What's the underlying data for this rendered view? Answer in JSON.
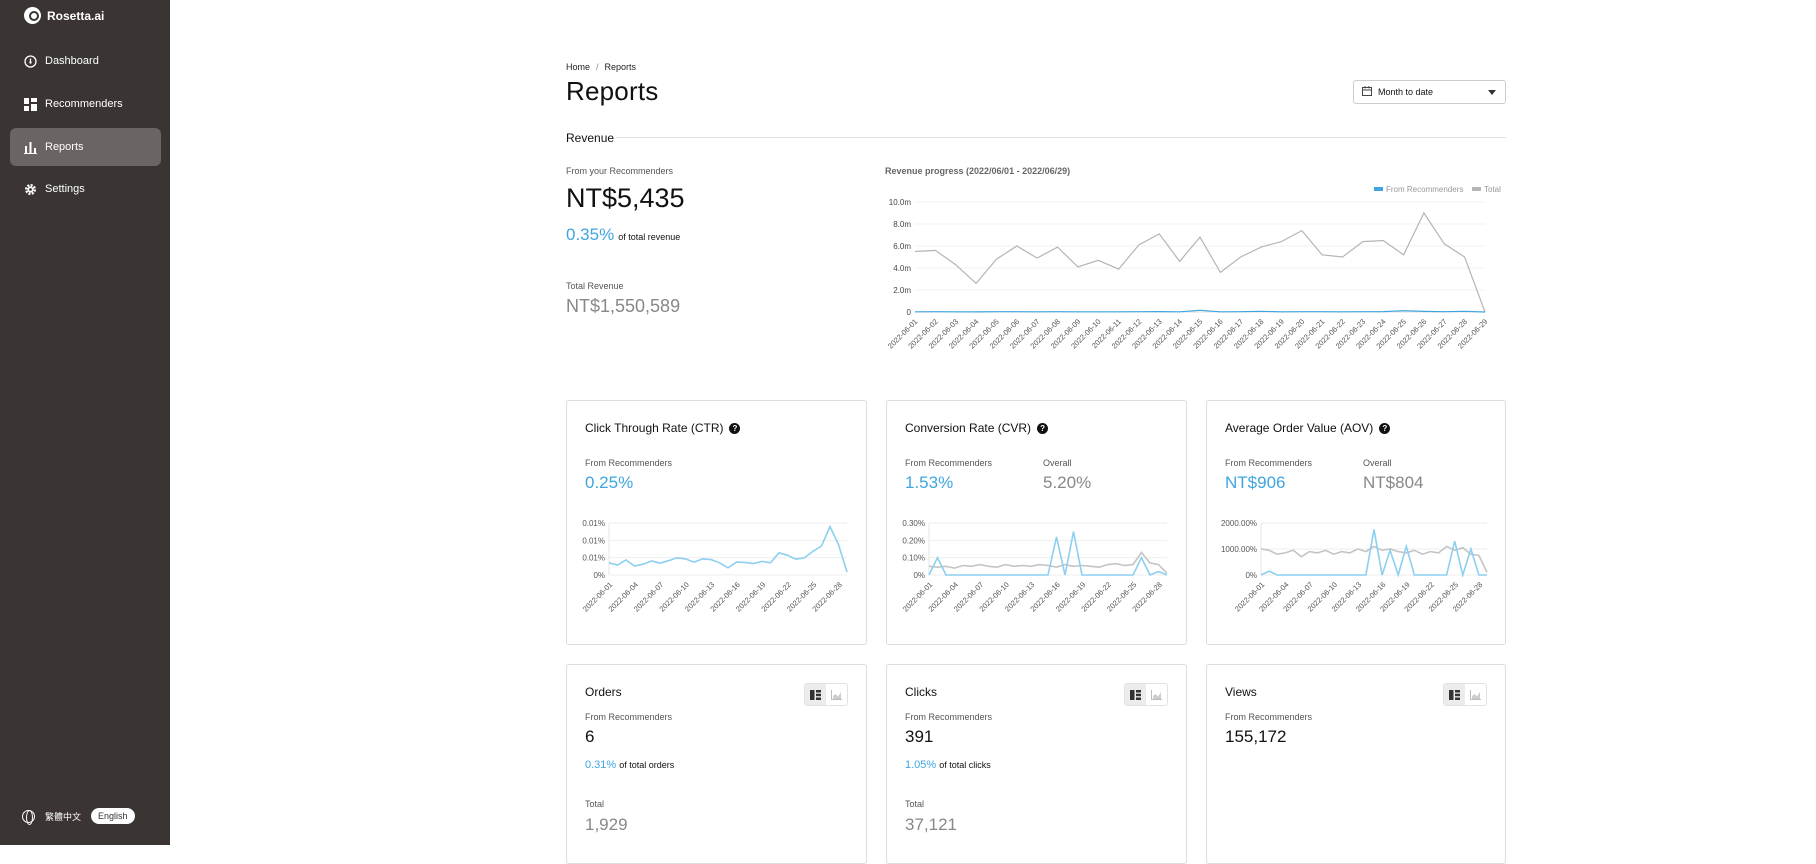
{
  "app": {
    "name": "Rosetta.ai"
  },
  "sidebar": {
    "items": [
      {
        "label": "Dashboard",
        "icon": "dashboard-icon"
      },
      {
        "label": "Recommenders",
        "icon": "grid-icon"
      },
      {
        "label": "Reports",
        "icon": "bar-chart-icon",
        "active": true
      },
      {
        "label": "Settings",
        "icon": "gear-icon"
      }
    ],
    "lang_zh": "繁體中文",
    "lang_en": "English"
  },
  "breadcrumb": {
    "home": "Home",
    "sep": "/",
    "current": "Reports"
  },
  "page": {
    "title": "Reports",
    "date_range": "Month to date"
  },
  "colors": {
    "accent": "#3ea5e0",
    "total_line": "#b5b5b5",
    "sidebar": "#3a3533"
  },
  "revenue": {
    "section_title": "Revenue",
    "from_label": "From your Recommenders",
    "from_value": "NT$5,435",
    "pct": "0.35%",
    "pct_suffix": "of total revenue",
    "total_label": "Total Revenue",
    "total_value": "NT$1,550,589"
  },
  "metrics": {
    "ctr": {
      "title": "Click Through Rate (CTR)",
      "from_label": "From Recommenders",
      "from_value": "0.25%"
    },
    "cvr": {
      "title": "Conversion Rate (CVR)",
      "from_label": "From Recommenders",
      "from_value": "1.53%",
      "overall_label": "Overall",
      "overall_value": "5.20%"
    },
    "aov": {
      "title": "Average Order Value (AOV)",
      "from_label": "From Recommenders",
      "from_value": "NT$906",
      "overall_label": "Overall",
      "overall_value": "NT$804"
    },
    "orders": {
      "title": "Orders",
      "from_label": "From Recommenders",
      "from_value": "6",
      "pct": "0.31%",
      "pct_suffix": "of total orders",
      "total_label": "Total",
      "total_value": "1,929"
    },
    "clicks": {
      "title": "Clicks",
      "from_label": "From Recommenders",
      "from_value": "391",
      "pct": "1.05%",
      "pct_suffix": "of total clicks",
      "total_label": "Total",
      "total_value": "37,121"
    },
    "views": {
      "title": "Views",
      "from_label": "From Recommenders",
      "from_value": "155,172"
    }
  },
  "chart_data": [
    {
      "type": "line",
      "title": "Revenue progress (2022/06/01 - 2022/06/29)",
      "legend": [
        "From Recommenders",
        "Total"
      ],
      "legend_position": "top-right",
      "ylim": [
        0,
        10000000
      ],
      "y_ticks": [
        "0",
        "2.0m",
        "4.0m",
        "6.0m",
        "8.0m",
        "10.0m"
      ],
      "x": [
        "2022-06-01",
        "2022-06-02",
        "2022-06-03",
        "2022-06-04",
        "2022-06-05",
        "2022-06-06",
        "2022-06-07",
        "2022-06-08",
        "2022-06-09",
        "2022-06-10",
        "2022-06-11",
        "2022-06-12",
        "2022-06-13",
        "2022-06-14",
        "2022-06-15",
        "2022-06-16",
        "2022-06-17",
        "2022-06-18",
        "2022-06-19",
        "2022-06-20",
        "2022-06-21",
        "2022-06-22",
        "2022-06-23",
        "2022-06-24",
        "2022-06-25",
        "2022-06-26",
        "2022-06-27",
        "2022-06-28",
        "2022-06-29"
      ],
      "series": [
        {
          "name": "Total",
          "color": "#b5b5b5",
          "values": [
            5500000,
            5600000,
            4300000,
            2600000,
            4800000,
            6000000,
            4900000,
            5900000,
            4100000,
            4700000,
            3900000,
            6100000,
            7100000,
            4600000,
            6800000,
            3600000,
            5000000,
            5900000,
            6400000,
            7400000,
            5200000,
            5000000,
            6400000,
            6500000,
            5200000,
            9000000,
            6200000,
            5000000,
            0
          ]
        },
        {
          "name": "From Recommenders",
          "color": "#3ea5e0",
          "values": [
            20000,
            30000,
            15000,
            10000,
            25000,
            30000,
            20000,
            25000,
            15000,
            20000,
            15000,
            30000,
            40000,
            20000,
            150000,
            20000,
            30000,
            60000,
            20000,
            30000,
            25000,
            20000,
            30000,
            40000,
            120000,
            50000,
            30000,
            60000,
            0
          ]
        }
      ]
    },
    {
      "type": "line",
      "name": "ctr",
      "y_ticks": [
        "0%",
        "0.01%",
        "0.01%",
        "0.01%"
      ],
      "x_ticks": [
        "2022-06-01",
        "2022-06-04",
        "2022-06-07",
        "2022-06-10",
        "2022-06-13",
        "2022-06-16",
        "2022-06-19",
        "2022-06-22",
        "2022-06-25",
        "2022-06-28"
      ],
      "series": [
        {
          "color": "#8ccff0",
          "values": [
            0.0034,
            0.0028,
            0.0042,
            0.0025,
            0.003,
            0.0039,
            0.0033,
            0.004,
            0.0048,
            0.0045,
            0.0036,
            0.0045,
            0.0043,
            0.0034,
            0.002,
            0.0036,
            0.0035,
            0.0032,
            0.0038,
            0.0034,
            0.0062,
            0.0055,
            0.0044,
            0.0048,
            0.0066,
            0.0081,
            0.0135,
            0.0085,
            0.0008
          ]
        }
      ]
    },
    {
      "type": "line",
      "name": "cvr",
      "y_ticks": [
        "0%",
        "0.10%",
        "0.20%",
        "0.30%"
      ],
      "x_ticks": [
        "2022-06-01",
        "2022-06-04",
        "2022-06-07",
        "2022-06-10",
        "2022-06-13",
        "2022-06-16",
        "2022-06-19",
        "2022-06-22",
        "2022-06-25",
        "2022-06-28"
      ],
      "series": [
        {
          "color": "#c4c4c4",
          "values": [
            0.05,
            0.045,
            0.05,
            0.04,
            0.055,
            0.05,
            0.06,
            0.05,
            0.045,
            0.06,
            0.05,
            0.055,
            0.05,
            0.06,
            0.055,
            0.045,
            0.06,
            0.05,
            0.055,
            0.05,
            0.045,
            0.06,
            0.065,
            0.055,
            0.06,
            0.13,
            0.07,
            0.06,
            0.01
          ]
        },
        {
          "color": "#8ccff0",
          "values": [
            0,
            0.1,
            0,
            0,
            0,
            0,
            0,
            0,
            0,
            0,
            0,
            0,
            0,
            0,
            0,
            0.22,
            0,
            0.25,
            0,
            0,
            0,
            0,
            0,
            0,
            0,
            0.1,
            0,
            0.02,
            0
          ]
        }
      ]
    },
    {
      "type": "line",
      "name": "aov",
      "y_ticks": [
        "0%",
        "1000.00%",
        "2000.00%"
      ],
      "x_ticks": [
        "2022-06-01",
        "2022-06-04",
        "2022-06-07",
        "2022-06-10",
        "2022-06-13",
        "2022-06-16",
        "2022-06-19",
        "2022-06-22",
        "2022-06-25",
        "2022-06-28"
      ],
      "series": [
        {
          "color": "#c4c4c4",
          "values": [
            1000,
            950,
            800,
            850,
            950,
            700,
            900,
            850,
            950,
            800,
            900,
            850,
            1000,
            900,
            1100,
            950,
            1000,
            900,
            850,
            950,
            800,
            900,
            850,
            1100,
            950,
            1050,
            800,
            750,
            100
          ]
        },
        {
          "color": "#8ccff0",
          "values": [
            0,
            150,
            0,
            0,
            0,
            0,
            0,
            0,
            0,
            0,
            0,
            0,
            0,
            0,
            1750,
            0,
            950,
            0,
            1100,
            0,
            0,
            0,
            0,
            0,
            1300,
            0,
            1000,
            0,
            0
          ]
        }
      ]
    }
  ]
}
